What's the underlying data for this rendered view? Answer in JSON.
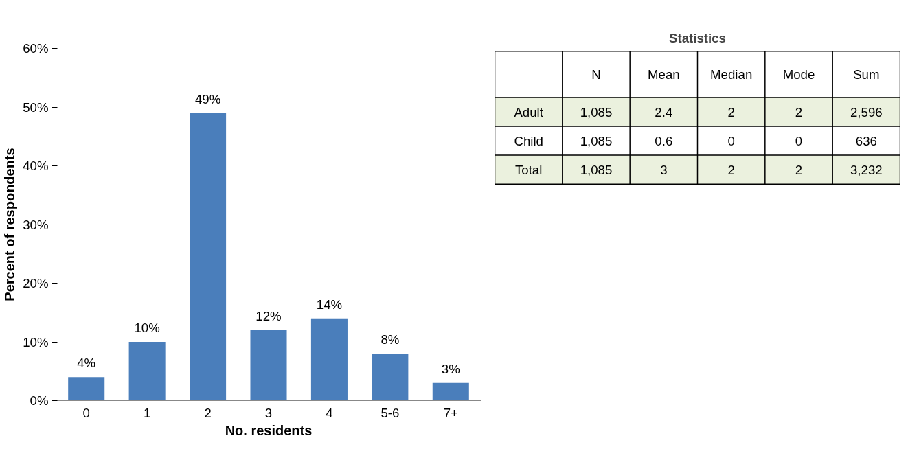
{
  "chart_data": [
    {
      "type": "bar",
      "xlabel": "No. residents",
      "ylabel": "Percent of respondents",
      "categories": [
        "0",
        "1",
        "2",
        "3",
        "4",
        "5-6",
        "7+"
      ],
      "values": [
        4,
        10,
        49,
        12,
        14,
        8,
        3
      ],
      "color": "#4a7ebb",
      "value_labels": [
        "4%",
        "10%",
        "49%",
        "12%",
        "14%",
        "8%",
        "3%"
      ],
      "ylim": [
        0,
        60
      ],
      "yticks": [
        {
          "value": 0,
          "label": "0%"
        },
        {
          "value": 10,
          "label": "10%"
        },
        {
          "value": 20,
          "label": "20%"
        },
        {
          "value": 30,
          "label": "30%"
        },
        {
          "value": 40,
          "label": "40%"
        },
        {
          "value": 50,
          "label": "50%"
        },
        {
          "value": 60,
          "label": "60%"
        }
      ],
      "grid": false
    },
    {
      "type": "other",
      "title": "Statistics",
      "categories": [
        "N",
        "Mean",
        "Median",
        "Mode",
        "Sum"
      ],
      "y_categories": [
        "Adult",
        "Child",
        "Total"
      ],
      "cell_labels": [
        [
          "1,085",
          "2.4",
          "2",
          "2",
          "2,596"
        ],
        [
          "1,085",
          "0.6",
          "0",
          "0",
          "636"
        ],
        [
          "1,085",
          "3",
          "2",
          "2",
          "3,232"
        ]
      ]
    }
  ]
}
